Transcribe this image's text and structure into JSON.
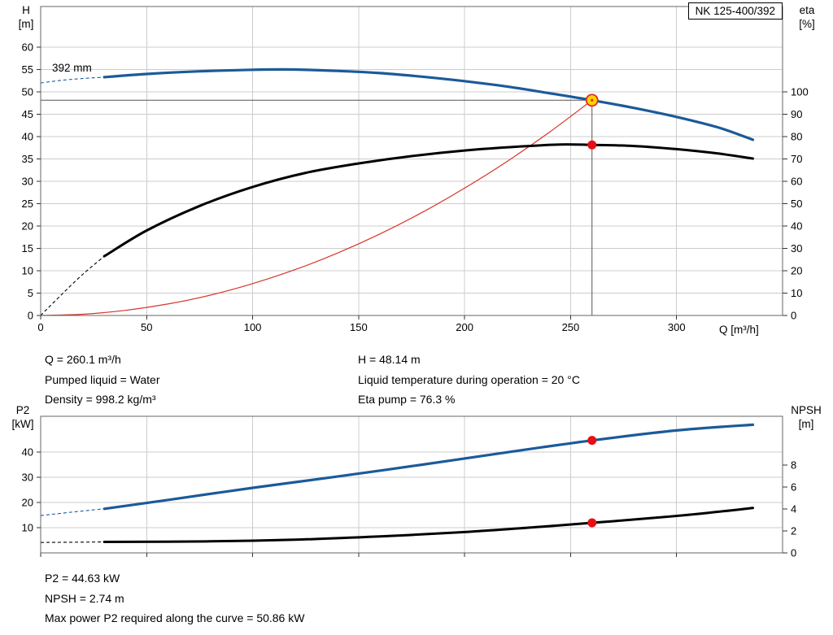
{
  "badge": {
    "model": "NK 125-400/392"
  },
  "annotations": {
    "impeller": "392 mm"
  },
  "info_top": {
    "left": [
      "Q = 260.1 m³/h",
      "Pumped liquid = Water",
      "Density = 998.2 kg/m³"
    ],
    "right": [
      "H = 48.14 m",
      "Liquid temperature during operation = 20 °C",
      "Eta pump = 76.3 %"
    ]
  },
  "info_bottom": [
    "P2 = 44.63 kW",
    "NPSH = 2.74 m",
    "Max power P2 required along the curve = 50.86 kW"
  ],
  "colors": {
    "curve_blue": "#1b5a99",
    "curve_black": "#000000",
    "system_red": "#d4362b",
    "dot_red": "#e60f14",
    "duty_fill": "#ffd200",
    "duty_stroke": "#d93025"
  },
  "chart_data": [
    {
      "id": "head-efficiency",
      "type": "line",
      "title": "NK 125-400/392",
      "x": {
        "label": "Q [m³/h]",
        "min": 0,
        "max": 350,
        "ticks": [
          0,
          50,
          100,
          150,
          200,
          250,
          300
        ],
        "show_tick_labels": true
      },
      "y_left": {
        "label": [
          "H",
          "[m]"
        ],
        "min": 0,
        "max": 69.1,
        "ticks": [
          0,
          5,
          10,
          15,
          20,
          25,
          30,
          35,
          40,
          45,
          50,
          55,
          60
        ]
      },
      "y_right": {
        "label": [
          "eta",
          "[%]"
        ],
        "min": 0,
        "max": 138.2,
        "ticks": [
          0,
          10,
          20,
          30,
          40,
          50,
          60,
          70,
          80,
          90,
          100
        ]
      },
      "series": [
        {
          "name": "system-curve",
          "axis": "left",
          "color": "#d4362b",
          "width": 1.2,
          "points": [
            [
              0,
              0
            ],
            [
              20,
              0.28
            ],
            [
              40,
              1.14
            ],
            [
              60,
              2.56
            ],
            [
              80,
              4.55
            ],
            [
              100,
              7.12
            ],
            [
              120,
              10.25
            ],
            [
              140,
              13.95
            ],
            [
              160,
              18.22
            ],
            [
              180,
              23.06
            ],
            [
              200,
              28.47
            ],
            [
              220,
              34.44
            ],
            [
              240,
              40.99
            ],
            [
              260.1,
              48.14
            ]
          ]
        },
        {
          "name": "efficiency-curve",
          "axis": "right",
          "color": "#000000",
          "width": 3,
          "dashed_points": [
            [
              0,
              0
            ],
            [
              10,
              9.5
            ],
            [
              20,
              18.5
            ],
            [
              30,
              26.5
            ]
          ],
          "points": [
            [
              30,
              26.5
            ],
            [
              50,
              38
            ],
            [
              75,
              49
            ],
            [
              100,
              57.5
            ],
            [
              125,
              63.8
            ],
            [
              150,
              68
            ],
            [
              175,
              71.3
            ],
            [
              200,
              73.8
            ],
            [
              225,
              75.5
            ],
            [
              245,
              76.5
            ],
            [
              260.1,
              76.3
            ],
            [
              280,
              75.8
            ],
            [
              300,
              74.4
            ],
            [
              320,
              72.4
            ],
            [
              336,
              70.2
            ]
          ]
        },
        {
          "name": "head-curve",
          "axis": "left",
          "color": "#1b5a99",
          "width": 3.2,
          "dashed_points": [
            [
              0,
              52
            ],
            [
              10,
              52.6
            ],
            [
              20,
              53
            ],
            [
              30,
              53.3
            ]
          ],
          "points": [
            [
              30,
              53.3
            ],
            [
              50,
              54
            ],
            [
              75,
              54.6
            ],
            [
              100,
              54.95
            ],
            [
              120,
              55
            ],
            [
              140,
              54.7
            ],
            [
              160,
              54.2
            ],
            [
              180,
              53.4
            ],
            [
              200,
              52.4
            ],
            [
              220,
              51.2
            ],
            [
              240,
              49.7
            ],
            [
              260.1,
              48.14
            ],
            [
              280,
              46.4
            ],
            [
              300,
              44.4
            ],
            [
              320,
              42
            ],
            [
              336,
              39.3
            ]
          ]
        }
      ],
      "ref_lines": [
        {
          "dir": "h",
          "axis": "left",
          "value": 48.14,
          "x_end": 260.1
        },
        {
          "dir": "v",
          "axis": "left",
          "x": 260.1,
          "value": 48.14
        }
      ],
      "markers": [
        {
          "name": "duty-point",
          "style": "duty",
          "x": 260.1,
          "value": 48.14,
          "axis": "left"
        },
        {
          "name": "eta-point",
          "style": "dot",
          "x": 260.1,
          "value": 76.3,
          "axis": "right"
        }
      ]
    },
    {
      "id": "power-npsh",
      "type": "line",
      "x": {
        "label": "",
        "min": 0,
        "max": 350,
        "ticks": [
          0,
          50,
          100,
          150,
          200,
          250,
          300
        ],
        "show_tick_labels": false
      },
      "y_left": {
        "label": [
          "P2",
          "[kW]"
        ],
        "min": 0,
        "max": 54.2,
        "ticks": [
          10,
          20,
          30,
          40
        ]
      },
      "y_right": {
        "label": [
          "NPSH",
          "[m]"
        ],
        "min": 0,
        "max": 12.45,
        "ticks": [
          0,
          2,
          4,
          6,
          8
        ]
      },
      "series": [
        {
          "name": "p2-curve",
          "axis": "left",
          "color": "#1b5a99",
          "width": 3.2,
          "dashed_points": [
            [
              0,
              14.8
            ],
            [
              15,
              16.2
            ],
            [
              30,
              17.5
            ]
          ],
          "points": [
            [
              30,
              17.5
            ],
            [
              60,
              21
            ],
            [
              100,
              25.8
            ],
            [
              140,
              30.3
            ],
            [
              180,
              35
            ],
            [
              220,
              39.9
            ],
            [
              260.1,
              44.63
            ],
            [
              300,
              48.6
            ],
            [
              336,
              50.86
            ]
          ]
        },
        {
          "name": "npsh-curve",
          "axis": "right",
          "color": "#000000",
          "width": 3,
          "dashed_points": [
            [
              0,
              0.95
            ],
            [
              15,
              0.97
            ],
            [
              30,
              1.0
            ]
          ],
          "points": [
            [
              30,
              1.0
            ],
            [
              80,
              1.05
            ],
            [
              120,
              1.2
            ],
            [
              160,
              1.5
            ],
            [
              200,
              1.9
            ],
            [
              230,
              2.3
            ],
            [
              260.1,
              2.74
            ],
            [
              290,
              3.2
            ],
            [
              315,
              3.65
            ],
            [
              336,
              4.1
            ]
          ]
        }
      ],
      "ref_lines": [],
      "markers": [
        {
          "name": "p2-point",
          "style": "dot",
          "x": 260.1,
          "value": 44.63,
          "axis": "left"
        },
        {
          "name": "npsh-point",
          "style": "dot",
          "x": 260.1,
          "value": 2.74,
          "axis": "right"
        }
      ]
    }
  ]
}
